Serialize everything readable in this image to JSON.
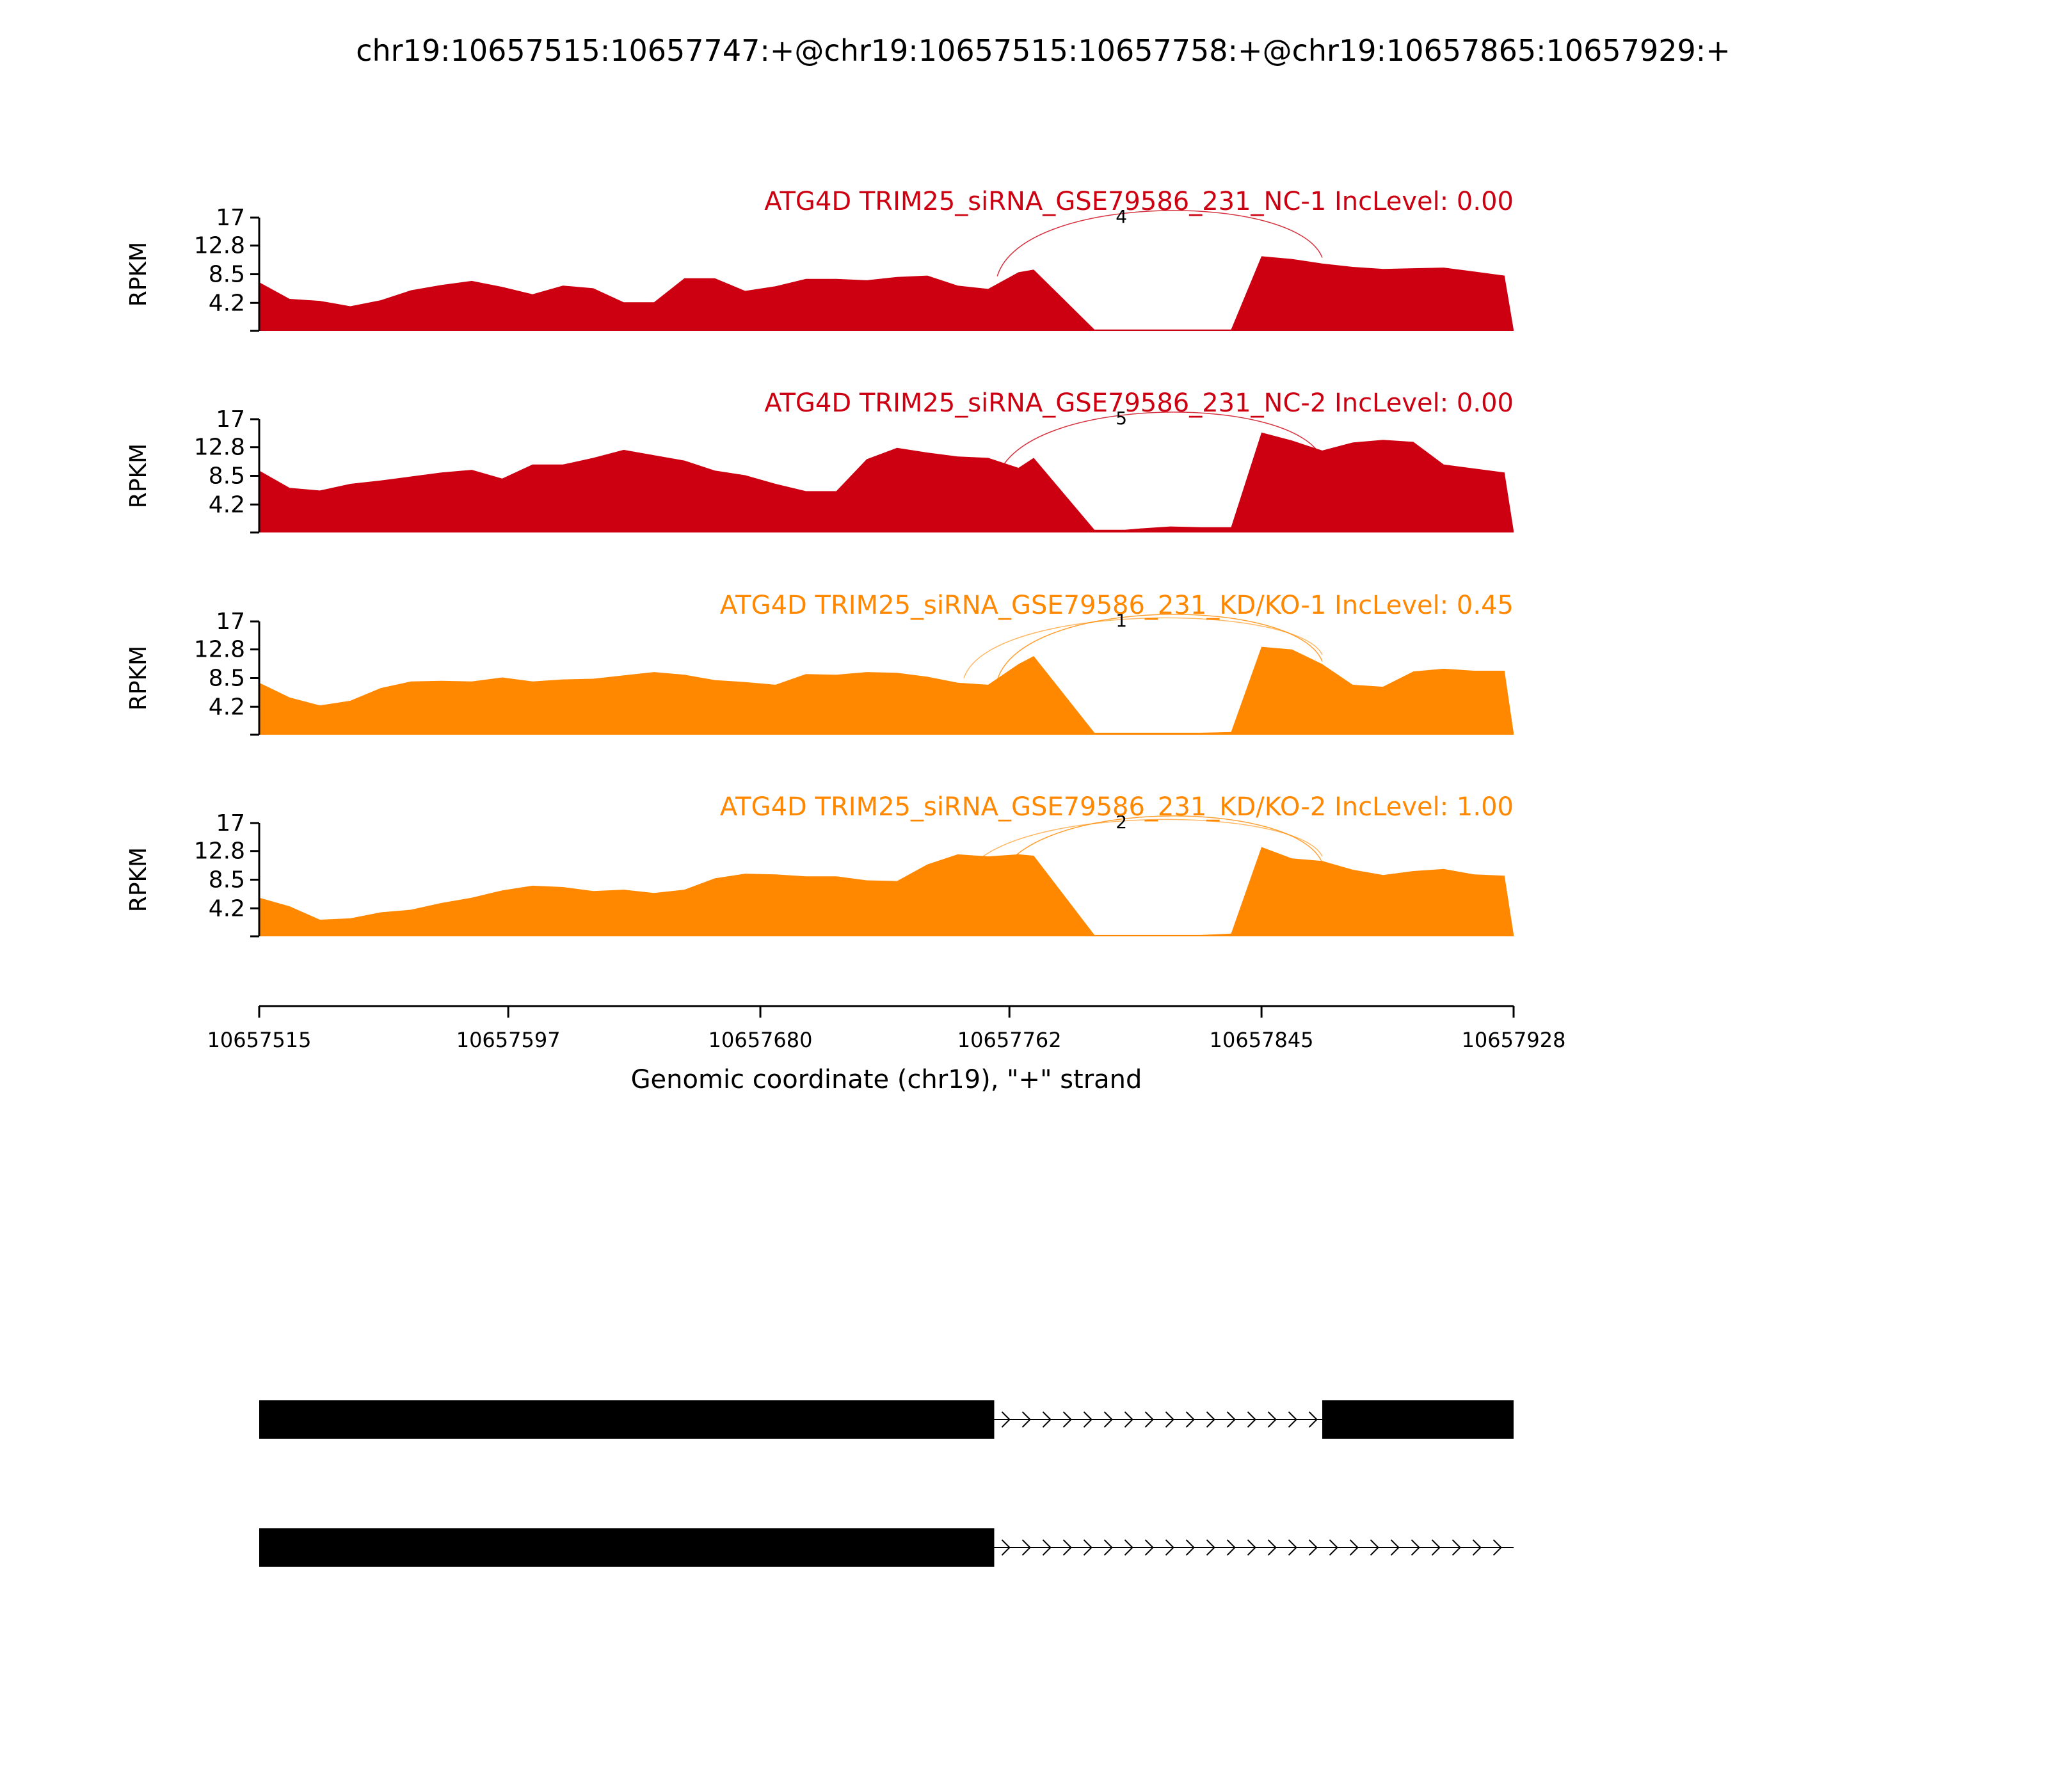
{
  "chart_data": {
    "type": "area",
    "title": "chr19:10657515:10657747:+@chr19:10657515:10657758:+@chr19:10657865:10657929:+",
    "xlabel": "Genomic coordinate (chr19), \"+\" strand",
    "ylabel": "RPKM",
    "xlim": [
      10657515,
      10657928
    ],
    "ylim": [
      0,
      17
    ],
    "x_ticks": [
      "10657515",
      "10657597",
      "10657680",
      "10657762",
      "10657845",
      "10657928"
    ],
    "y_ticks": [
      "4.2",
      "8.5",
      "12.8",
      "17"
    ],
    "tracks": [
      {
        "name": "ATG4D TRIM25_siRNA_GSE79586_231_NC-1 IncLevel: 0.00",
        "color": "#cc0011",
        "junction_count": "4",
        "coverage": {
          "x": [
            10657515,
            10657525,
            10657535,
            10657545,
            10657555,
            10657565,
            10657575,
            10657585,
            10657595,
            10657605,
            10657615,
            10657625,
            10657635,
            10657645,
            10657655,
            10657665,
            10657675,
            10657685,
            10657695,
            10657705,
            10657715,
            10657725,
            10657735,
            10657745,
            10657755,
            10657765,
            10657770,
            10657790,
            10657800,
            10657805,
            10657815,
            10657825,
            10657835,
            10657845,
            10657855,
            10657865,
            10657875,
            10657885,
            10657895,
            10657905,
            10657915,
            10657925,
            10657928
          ],
          "y": [
            7.3,
            4.8,
            4.5,
            3.7,
            4.6,
            6.1,
            6.9,
            7.5,
            6.6,
            5.5,
            6.8,
            6.4,
            4.3,
            4.3,
            7.9,
            7.9,
            6.0,
            6.7,
            7.8,
            7.8,
            7.6,
            8.1,
            8.3,
            6.8,
            6.3,
            8.8,
            9.2,
            0.2,
            0.2,
            0.2,
            0.2,
            0.2,
            0.2,
            11.2,
            10.8,
            10.1,
            9.6,
            9.3,
            9.4,
            9.5,
            8.9,
            8.3,
            0.2
          ]
        }
      },
      {
        "name": "ATG4D TRIM25_siRNA_GSE79586_231_NC-2 IncLevel: 0.00",
        "color": "#cc0011",
        "junction_count": "5",
        "coverage": {
          "x": [
            10657515,
            10657525,
            10657535,
            10657545,
            10657555,
            10657565,
            10657575,
            10657585,
            10657595,
            10657605,
            10657615,
            10657625,
            10657635,
            10657645,
            10657655,
            10657665,
            10657675,
            10657685,
            10657695,
            10657705,
            10657715,
            10657725,
            10657735,
            10657745,
            10657755,
            10657765,
            10657770,
            10657790,
            10657800,
            10657805,
            10657815,
            10657825,
            10657835,
            10657845,
            10657855,
            10657865,
            10657875,
            10657885,
            10657895,
            10657905,
            10657915,
            10657925,
            10657928
          ],
          "y": [
            9.3,
            6.7,
            6.3,
            7.3,
            7.8,
            8.4,
            9.0,
            9.4,
            8.1,
            10.2,
            10.2,
            11.2,
            12.4,
            11.6,
            10.8,
            9.3,
            8.6,
            7.3,
            6.2,
            6.2,
            11.0,
            12.7,
            12.0,
            11.4,
            11.2,
            9.7,
            11.2,
            0.4,
            0.4,
            0.6,
            0.9,
            0.8,
            0.8,
            15.0,
            13.8,
            12.3,
            13.5,
            13.9,
            13.6,
            10.2,
            9.6,
            9.0,
            0.3
          ]
        }
      },
      {
        "name": "ATG4D TRIM25_siRNA_GSE79586_231_KD/KO-1 IncLevel: 0.45",
        "color": "#ff8800",
        "junction_count": "1",
        "coverage": {
          "x": [
            10657515,
            10657525,
            10657535,
            10657545,
            10657555,
            10657565,
            10657575,
            10657585,
            10657595,
            10657605,
            10657615,
            10657625,
            10657635,
            10657645,
            10657655,
            10657665,
            10657675,
            10657685,
            10657695,
            10657705,
            10657715,
            10657725,
            10657735,
            10657745,
            10657755,
            10657765,
            10657770,
            10657790,
            10657800,
            10657805,
            10657815,
            10657825,
            10657835,
            10657845,
            10657855,
            10657865,
            10657875,
            10657885,
            10657895,
            10657905,
            10657915,
            10657925,
            10657928
          ],
          "y": [
            7.8,
            5.6,
            4.4,
            5.1,
            7.0,
            8.0,
            8.1,
            8.0,
            8.6,
            8.0,
            8.3,
            8.4,
            8.9,
            9.4,
            9.0,
            8.2,
            7.9,
            7.5,
            9.1,
            9.0,
            9.4,
            9.3,
            8.7,
            7.8,
            7.5,
            10.6,
            11.8,
            0.3,
            0.3,
            0.3,
            0.3,
            0.3,
            0.4,
            13.2,
            12.8,
            10.6,
            7.5,
            7.2,
            9.5,
            9.9,
            9.6,
            9.6,
            0.3
          ]
        }
      },
      {
        "name": "ATG4D TRIM25_siRNA_GSE79586_231_KD/KO-2 IncLevel: 1.00",
        "color": "#ff8800",
        "junction_count": "2",
        "coverage": {
          "x": [
            10657515,
            10657525,
            10657535,
            10657545,
            10657555,
            10657565,
            10657575,
            10657585,
            10657595,
            10657605,
            10657615,
            10657625,
            10657635,
            10657645,
            10657655,
            10657665,
            10657675,
            10657685,
            10657695,
            10657705,
            10657715,
            10657725,
            10657735,
            10657745,
            10657755,
            10657765,
            10657770,
            10657790,
            10657800,
            10657805,
            10657815,
            10657825,
            10657835,
            10657845,
            10657855,
            10657865,
            10657875,
            10657885,
            10657895,
            10657905,
            10657915,
            10657925,
            10657928
          ],
          "y": [
            5.8,
            4.5,
            2.5,
            2.7,
            3.6,
            4.0,
            5.0,
            5.8,
            6.9,
            7.6,
            7.4,
            6.8,
            7.0,
            6.5,
            7.0,
            8.7,
            9.4,
            9.3,
            9.0,
            9.0,
            8.4,
            8.3,
            10.8,
            12.3,
            12.0,
            12.3,
            12.1,
            0.2,
            0.2,
            0.2,
            0.2,
            0.2,
            0.4,
            13.4,
            11.7,
            11.3,
            10.0,
            9.2,
            9.8,
            10.1,
            9.3,
            9.1,
            0.3
          ]
        }
      }
    ],
    "transcripts": [
      {
        "exons": [
          [
            10657515,
            10657757
          ],
          [
            10657865,
            10657928
          ]
        ],
        "intron_direction": "+"
      },
      {
        "exons": [
          [
            10657515,
            10657757
          ]
        ],
        "intron_end": 10657928,
        "intron_direction": "+"
      }
    ]
  }
}
